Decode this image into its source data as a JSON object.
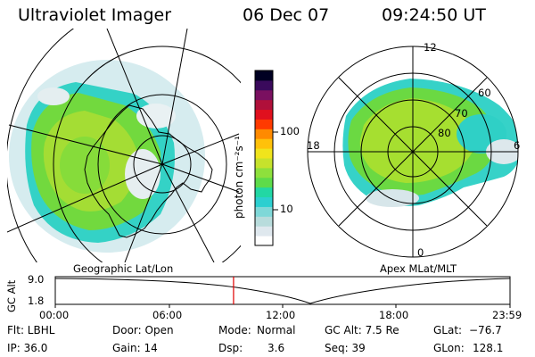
{
  "header": {
    "instrument": "Ultraviolet Imager",
    "date": "06 Dec 07",
    "time": "09:24:50 UT"
  },
  "colorbar": {
    "unit_label": "photon cm⁻²s⁻¹",
    "tick_100": "100",
    "tick_10": "10",
    "colors": [
      "#ffffff",
      "#dfe8ee",
      "#b8dcdc",
      "#7fd8d8",
      "#2ccfd0",
      "#22d7a4",
      "#5edb4a",
      "#8ee03c",
      "#c6e22c",
      "#f0e41c",
      "#ffc10a",
      "#ff8a00",
      "#ff3a00",
      "#e0101e",
      "#b0103a",
      "#7a1060",
      "#3a0a5c",
      "#000022"
    ]
  },
  "left_panel": {
    "caption": "Geographic Lat/Lon"
  },
  "right_panel": {
    "caption": "Apex MLat/MLT",
    "mlt_labels": {
      "top": "12",
      "left": "18",
      "right": "6",
      "bottom": "0"
    },
    "lat_labels": [
      "60",
      "70",
      "80"
    ]
  },
  "altitude_plot": {
    "ylabel": "GC Alt",
    "ymax_label": "9.0",
    "ymin_label": "1.8",
    "time_ticks": [
      "00:00",
      "06:00",
      "12:00",
      "18:00",
      "23:59"
    ],
    "current_time_fraction": 0.392
  },
  "status": {
    "flt": "Flt: LBHL",
    "door": "Door: Open",
    "mode_label": "Mode:",
    "mode_value": "Normal",
    "gc_alt": "GC Alt: 7.5 Re",
    "glat_label": "GLat:",
    "glat_value": "−76.7",
    "ip": "IP: 36.0",
    "gain": "Gain: 14",
    "dsp_label": "Dsp:",
    "dsp_value": "3.6",
    "seq": "Seq: 39",
    "glon_label": "GLon:",
    "glon_value": "128.1"
  }
}
